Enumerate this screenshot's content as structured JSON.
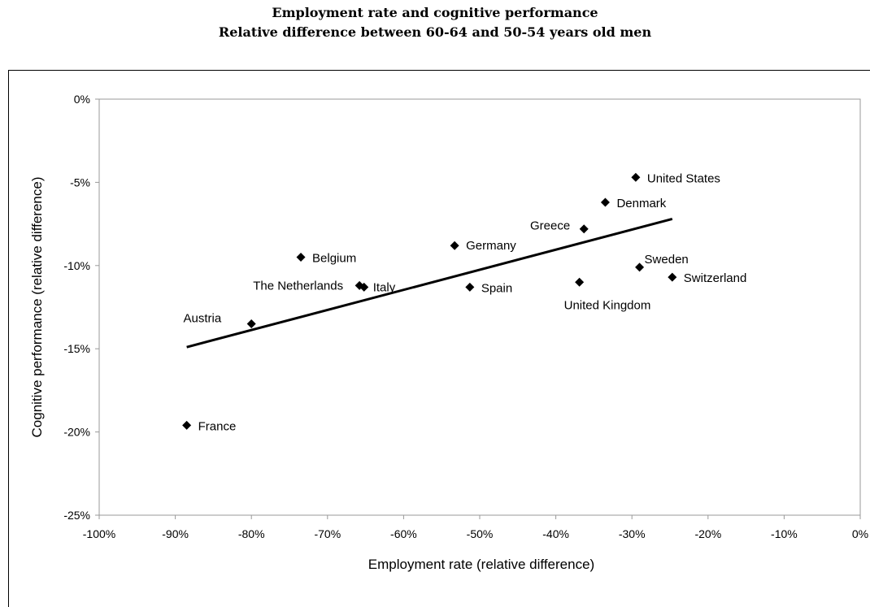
{
  "chart_data": {
    "type": "scatter",
    "title": "Employment rate and cognitive performance",
    "subtitle": "Relative difference between 60-64 and 50-54 years old men",
    "xlabel": "Employment rate (relative difference)",
    "ylabel": "Cognitive performance (relative difference)",
    "xlim": [
      -100,
      0
    ],
    "ylim": [
      -25,
      0
    ],
    "x_ticks": [
      "-100%",
      "-90%",
      "-80%",
      "-70%",
      "-60%",
      "-50%",
      "-40%",
      "-30%",
      "-20%",
      "-10%",
      "0%"
    ],
    "y_ticks": [
      "0%",
      "-5%",
      "-10%",
      "-15%",
      "-20%",
      "-25%"
    ],
    "points": [
      {
        "label": "United States",
        "x": -29.5,
        "y": -4.7
      },
      {
        "label": "Denmark",
        "x": -33.5,
        "y": -6.2
      },
      {
        "label": "Greece",
        "x": -36.3,
        "y": -7.8
      },
      {
        "label": "Germany",
        "x": -53.3,
        "y": -8.8
      },
      {
        "label": "Belgium",
        "x": -73.5,
        "y": -9.5
      },
      {
        "label": "Sweden",
        "x": -29.0,
        "y": -10.1
      },
      {
        "label": "Switzerland",
        "x": -24.7,
        "y": -10.7
      },
      {
        "label": "The Netherlands",
        "x": -65.8,
        "y": -11.2
      },
      {
        "label": "Italy",
        "x": -65.2,
        "y": -11.3
      },
      {
        "label": "Spain",
        "x": -51.3,
        "y": -11.3
      },
      {
        "label": "United Kingdom",
        "x": -36.9,
        "y": -11.0
      },
      {
        "label": "Austria",
        "x": -80.0,
        "y": -13.5
      },
      {
        "label": "France",
        "x": -88.5,
        "y": -19.6
      }
    ],
    "trendline": {
      "x": [
        -88.5,
        -24.7
      ],
      "y": [
        -14.9,
        -7.2
      ]
    },
    "grid": false,
    "legend": "none",
    "colors": {
      "marker": "#000000",
      "line": "#000000",
      "plot_border": "#999999"
    }
  }
}
